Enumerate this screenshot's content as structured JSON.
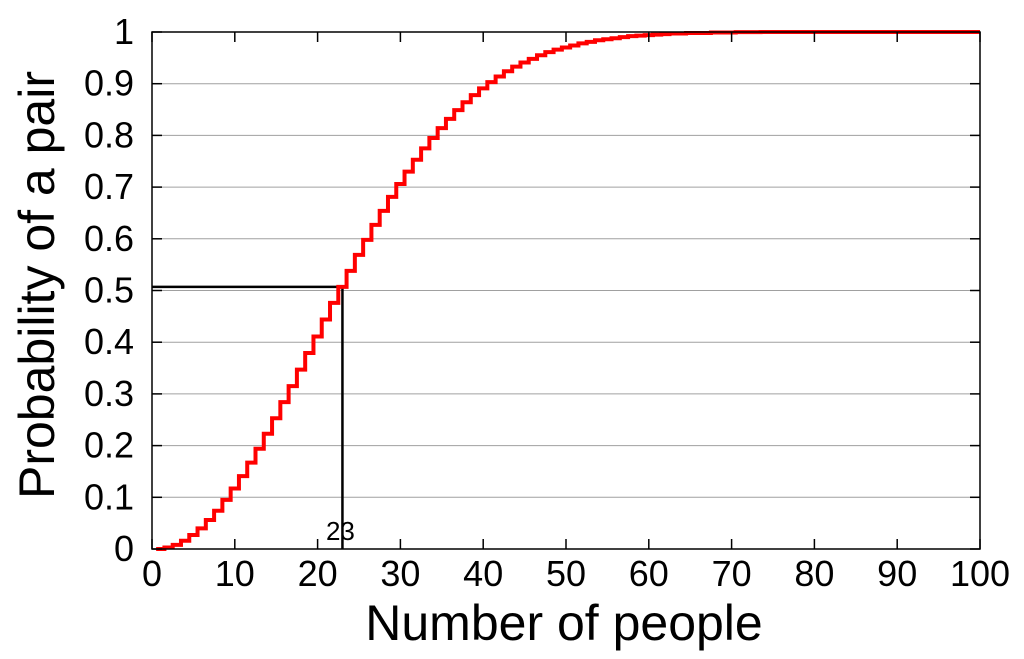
{
  "chart_data": {
    "type": "line",
    "title": "",
    "xlabel": "Number of people",
    "ylabel": "Probability of a pair",
    "xlim": [
      0,
      100
    ],
    "ylim": [
      0,
      1
    ],
    "grid": "horizontal",
    "legend": "none",
    "x_ticks": [
      "0",
      "10",
      "20",
      "30",
      "40",
      "50",
      "60",
      "70",
      "80",
      "90",
      "100"
    ],
    "y_ticks": [
      "0",
      "0.1",
      "0.2",
      "0.3",
      "0.4",
      "0.5",
      "0.6",
      "0.7",
      "0.8",
      "0.9",
      "1"
    ],
    "series": [
      {
        "step": "center",
        "x": [
          1,
          2,
          3,
          4,
          5,
          6,
          7,
          8,
          9,
          10,
          11,
          12,
          13,
          14,
          15,
          16,
          17,
          18,
          19,
          20,
          21,
          22,
          23,
          24,
          25,
          26,
          27,
          28,
          29,
          30,
          31,
          32,
          33,
          34,
          35,
          36,
          37,
          38,
          39,
          40,
          41,
          42,
          43,
          44,
          45,
          46,
          47,
          48,
          49,
          50,
          51,
          52,
          53,
          54,
          55,
          56,
          57,
          58,
          59,
          60,
          61,
          62,
          63,
          64,
          65,
          66,
          67,
          68,
          69,
          70,
          71,
          72,
          73,
          74,
          75,
          76,
          77,
          78,
          79,
          80,
          81,
          82,
          83,
          84,
          85,
          86,
          87,
          88,
          89,
          90,
          91,
          92,
          93,
          94,
          95,
          96,
          97,
          98,
          99,
          100
        ],
        "values": [
          0,
          0.003,
          0.008,
          0.016,
          0.027,
          0.04,
          0.056,
          0.074,
          0.095,
          0.117,
          0.141,
          0.167,
          0.194,
          0.223,
          0.253,
          0.284,
          0.315,
          0.347,
          0.379,
          0.411,
          0.444,
          0.476,
          0.507,
          0.538,
          0.569,
          0.598,
          0.627,
          0.654,
          0.681,
          0.706,
          0.73,
          0.753,
          0.775,
          0.795,
          0.814,
          0.832,
          0.849,
          0.864,
          0.878,
          0.891,
          0.903,
          0.914,
          0.924,
          0.933,
          0.941,
          0.948,
          0.955,
          0.961,
          0.966,
          0.97,
          0.974,
          0.978,
          0.981,
          0.984,
          0.986,
          0.988,
          0.99,
          0.992,
          0.993,
          0.994,
          0.995,
          0.996,
          0.997,
          0.997,
          0.998,
          0.998,
          0.998,
          0.999,
          0.999,
          0.999,
          0.9997,
          0.9998,
          0.9998,
          0.9999,
          0.9999,
          0.9999,
          0.9999,
          0.9999,
          1,
          1,
          1,
          1,
          1,
          1,
          1,
          1,
          1,
          1,
          1,
          1,
          1,
          1,
          1,
          1,
          1,
          1,
          1,
          1,
          1,
          1
        ],
        "color": "#ff0000"
      }
    ],
    "annotations": [
      {
        "label": "23",
        "x": 23,
        "y": 0.507
      }
    ],
    "marker_color": "#000000"
  }
}
